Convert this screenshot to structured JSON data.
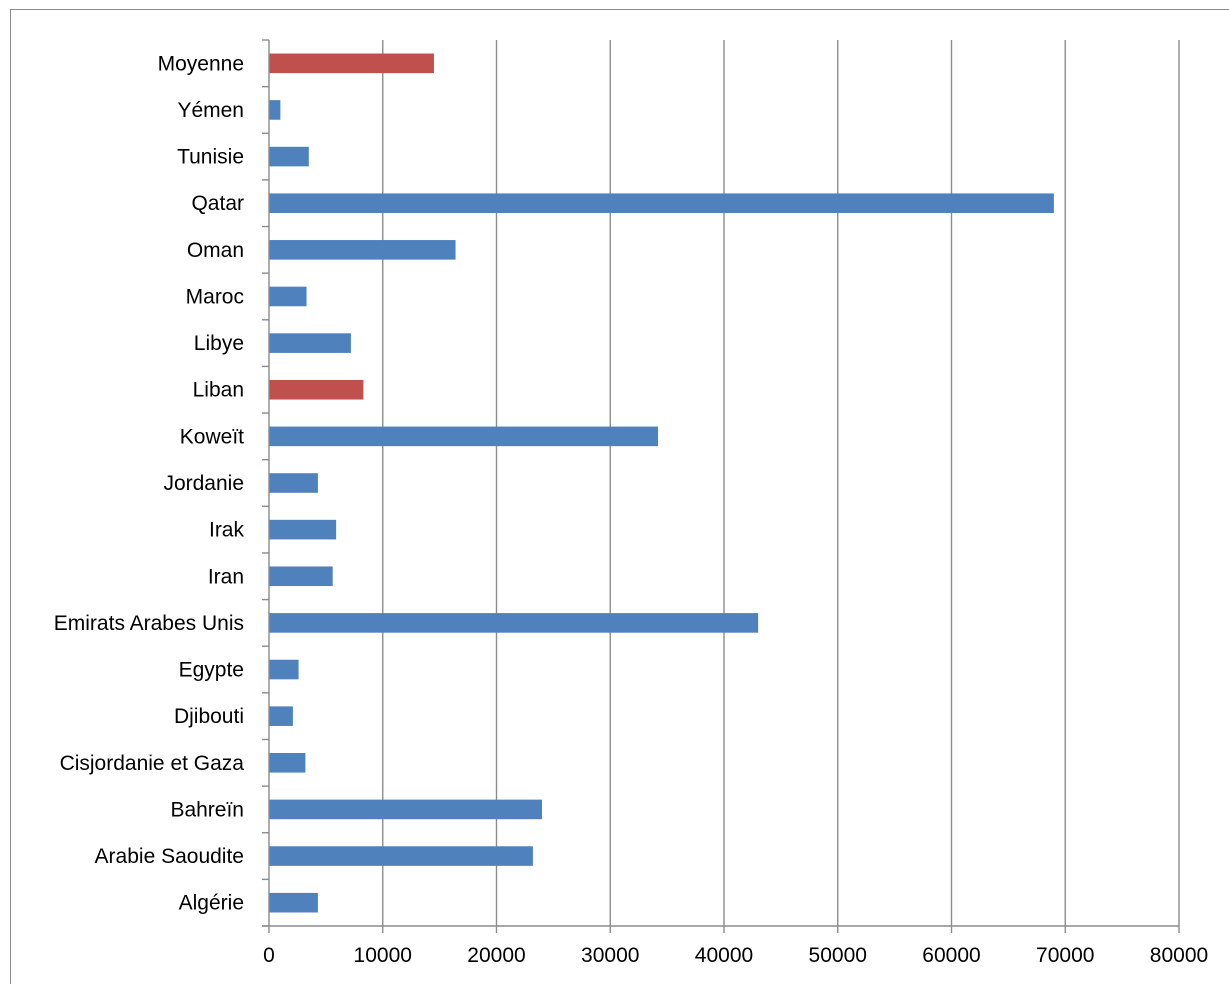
{
  "chart_data": {
    "type": "bar",
    "orientation": "horizontal",
    "title": "",
    "xlabel": "",
    "ylabel": "",
    "xlim": [
      0,
      80000
    ],
    "x_ticks": [
      0,
      10000,
      20000,
      30000,
      40000,
      50000,
      60000,
      70000,
      80000
    ],
    "x_tick_labels": [
      "0",
      "10000",
      "20000",
      "30000",
      "40000",
      "50000",
      "60000",
      "70000",
      "80000"
    ],
    "grid": "vertical major gridlines",
    "legend": "none",
    "categories": [
      "Algérie",
      "Arabie Saoudite",
      "Bahreïn",
      "Cisjordanie et Gaza",
      "Djibouti",
      "Egypte",
      "Emirats Arabes Unis",
      "Iran",
      "Irak",
      "Jordanie",
      "Koweït",
      "Liban",
      "Libye",
      "Maroc",
      "Oman",
      "Qatar",
      "Tunisie",
      "Yémen",
      "Moyenne"
    ],
    "values": [
      4300,
      23200,
      24000,
      3200,
      2100,
      2600,
      43000,
      5600,
      5900,
      4300,
      34200,
      8300,
      7200,
      3300,
      16400,
      69000,
      3500,
      1000,
      14500
    ],
    "colors": {
      "default": "#4f81bd",
      "highlight": "#c0504d",
      "gridline": "#8c8c8c",
      "axis": "#8c8c8c"
    },
    "highlighted_categories": [
      "Liban",
      "Moyenne"
    ]
  }
}
